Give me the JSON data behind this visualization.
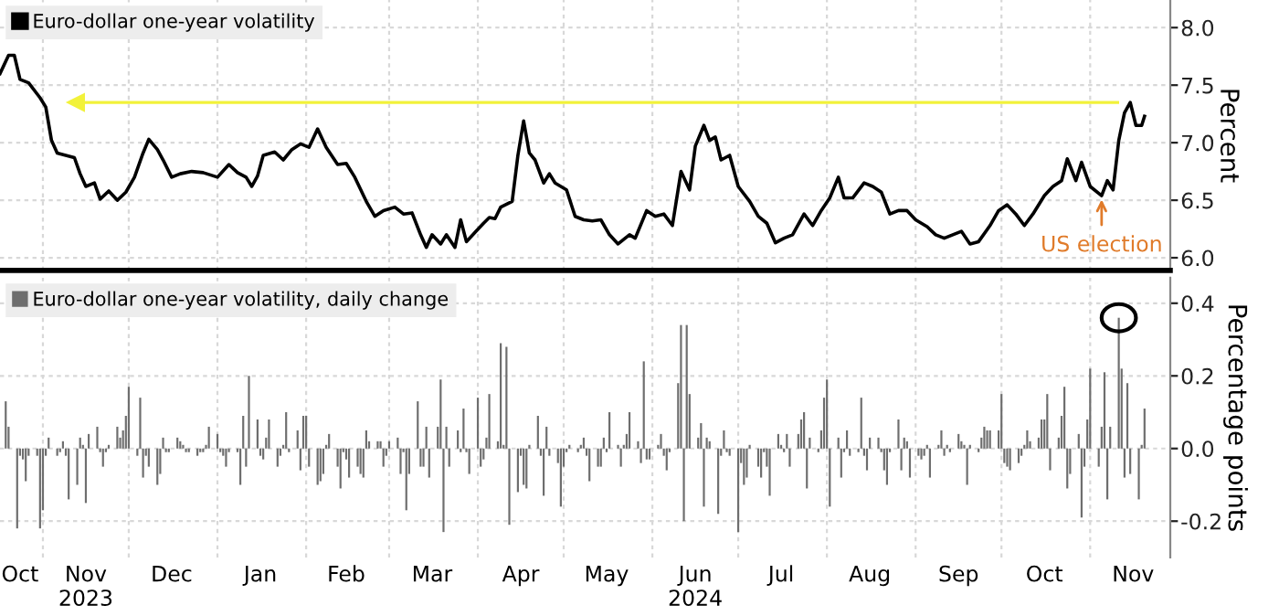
{
  "chart_data": [
    {
      "type": "line",
      "ylabel": "Percent",
      "legend": "top left",
      "grid": true,
      "tick_labels": "y",
      "xlim": [
        "2023-10-17",
        "2024-11-29"
      ],
      "ylim": [
        5.89,
        8.24
      ],
      "yticks": [
        {
          "value": 6,
          "label": "6.0"
        },
        {
          "value": 6.5,
          "label": "6.5"
        },
        {
          "value": 7,
          "label": "7.0"
        },
        {
          "value": 7.5,
          "label": "7.5"
        },
        {
          "value": 8,
          "label": "8.0"
        }
      ],
      "xticks": [
        {
          "value": "2023-11-01",
          "label": null
        },
        {
          "value": "2023-12-01",
          "label": null
        },
        {
          "value": "2024-01-01",
          "label": null
        },
        {
          "value": "2024-02-01",
          "label": null
        },
        {
          "value": "2024-03-01",
          "label": null
        },
        {
          "value": "2024-04-01",
          "label": null
        },
        {
          "value": "2024-05-01",
          "label": null
        },
        {
          "value": "2024-06-01",
          "label": null
        },
        {
          "value": "2024-07-01",
          "label": null
        },
        {
          "value": "2024-08-01",
          "label": null
        },
        {
          "value": "2024-09-01",
          "label": null
        },
        {
          "value": "2024-10-01",
          "label": null
        },
        {
          "value": "2024-11-01",
          "label": null
        }
      ],
      "ref_lines": [
        {
          "axis": "y",
          "value": 7.35,
          "color": "#f2f23a"
        }
      ],
      "annotations": [
        {
          "text": "US election",
          "x": "2024-11-05",
          "y": 6.55
        }
      ],
      "series": [
        {
          "name": "Euro-dollar one-year volatility",
          "color": "#000000",
          "x": [
            "2023-10-17",
            "2023-10-20",
            "2023-10-22",
            "2023-10-24",
            "2023-10-27",
            "2023-10-31",
            "2023-11-02",
            "2023-11-04",
            "2023-11-06",
            "2023-11-09",
            "2023-11-12",
            "2023-11-14",
            "2023-11-16",
            "2023-11-19",
            "2023-11-21",
            "2023-11-24",
            "2023-11-27",
            "2023-11-30",
            "2023-12-03",
            "2023-12-06",
            "2023-12-08",
            "2023-12-11",
            "2023-12-13",
            "2023-12-16",
            "2023-12-19",
            "2023-12-23",
            "2023-12-27",
            "2024-01-01",
            "2024-01-05",
            "2024-01-08",
            "2024-01-11",
            "2024-01-13",
            "2024-01-15",
            "2024-01-17",
            "2024-01-21",
            "2024-01-24",
            "2024-01-27",
            "2024-01-30",
            "2024-02-02",
            "2024-02-05",
            "2024-02-08",
            "2024-02-12",
            "2024-02-15",
            "2024-02-18",
            "2024-02-22",
            "2024-02-25",
            "2024-02-28",
            "2024-03-03",
            "2024-03-06",
            "2024-03-09",
            "2024-03-12",
            "2024-03-14",
            "2024-03-16",
            "2024-03-19",
            "2024-03-21",
            "2024-03-24",
            "2024-03-26",
            "2024-03-28",
            "2024-03-31",
            "2024-04-03",
            "2024-04-05",
            "2024-04-07",
            "2024-04-09",
            "2024-04-13",
            "2024-04-15",
            "2024-04-17",
            "2024-04-19",
            "2024-04-21",
            "2024-04-24",
            "2024-04-26",
            "2024-04-28",
            "2024-05-02",
            "2024-05-05",
            "2024-05-08",
            "2024-05-11",
            "2024-05-14",
            "2024-05-17",
            "2024-05-20",
            "2024-05-24",
            "2024-05-26",
            "2024-05-30",
            "2024-06-02",
            "2024-06-05",
            "2024-06-08",
            "2024-06-11",
            "2024-06-14",
            "2024-06-16",
            "2024-06-19",
            "2024-06-21",
            "2024-06-23",
            "2024-06-25",
            "2024-06-28",
            "2024-07-01",
            "2024-07-05",
            "2024-07-08",
            "2024-07-11",
            "2024-07-14",
            "2024-07-17",
            "2024-07-20",
            "2024-07-24",
            "2024-07-27",
            "2024-07-30",
            "2024-08-02",
            "2024-08-05",
            "2024-08-07",
            "2024-08-10",
            "2024-08-14",
            "2024-08-17",
            "2024-08-20",
            "2024-08-23",
            "2024-08-26",
            "2024-08-29",
            "2024-09-01",
            "2024-09-05",
            "2024-09-08",
            "2024-09-11",
            "2024-09-14",
            "2024-09-17",
            "2024-09-20",
            "2024-09-23",
            "2024-09-27",
            "2024-09-30",
            "2024-10-03",
            "2024-10-06",
            "2024-10-09",
            "2024-10-12",
            "2024-10-16",
            "2024-10-19",
            "2024-10-22",
            "2024-10-24",
            "2024-10-27",
            "2024-10-29",
            "2024-11-01",
            "2024-11-05",
            "2024-11-07",
            "2024-11-09",
            "2024-11-11",
            "2024-11-13",
            "2024-11-15",
            "2024-11-17",
            "2024-11-19",
            "2024-11-20"
          ],
          "values": [
            7.6,
            7.76,
            7.76,
            7.55,
            7.52,
            7.39,
            7.31,
            7.02,
            6.91,
            6.89,
            6.87,
            6.73,
            6.62,
            6.65,
            6.51,
            6.58,
            6.5,
            6.57,
            6.7,
            6.91,
            7.03,
            6.94,
            6.85,
            6.7,
            6.73,
            6.75,
            6.74,
            6.7,
            6.81,
            6.74,
            6.7,
            6.62,
            6.71,
            6.89,
            6.92,
            6.85,
            6.94,
            6.99,
            6.96,
            7.12,
            6.96,
            6.81,
            6.82,
            6.7,
            6.49,
            6.36,
            6.41,
            6.44,
            6.38,
            6.39,
            6.2,
            6.09,
            6.2,
            6.12,
            6.2,
            6.09,
            6.33,
            6.14,
            6.22,
            6.3,
            6.35,
            6.34,
            6.44,
            6.49,
            6.89,
            7.19,
            6.91,
            6.85,
            6.65,
            6.73,
            6.65,
            6.59,
            6.36,
            6.33,
            6.32,
            6.33,
            6.2,
            6.12,
            6.2,
            6.17,
            6.41,
            6.36,
            6.38,
            6.28,
            6.75,
            6.59,
            6.97,
            7.15,
            7.02,
            7.05,
            6.85,
            6.89,
            6.62,
            6.49,
            6.36,
            6.3,
            6.13,
            6.17,
            6.2,
            6.38,
            6.28,
            6.41,
            6.52,
            6.7,
            6.52,
            6.52,
            6.65,
            6.62,
            6.57,
            6.38,
            6.41,
            6.41,
            6.33,
            6.27,
            6.2,
            6.17,
            6.2,
            6.23,
            6.12,
            6.14,
            6.28,
            6.41,
            6.46,
            6.38,
            6.28,
            6.38,
            6.54,
            6.62,
            6.67,
            6.86,
            6.67,
            6.83,
            6.62,
            6.54,
            6.67,
            6.59,
            7.02,
            7.26,
            7.35,
            7.15,
            7.15,
            7.23
          ]
        }
      ]
    },
    {
      "type": "bar",
      "ylabel": "Percentage points",
      "legend": "top left",
      "grid": true,
      "xlim": [
        "2023-10-17",
        "2024-11-29"
      ],
      "ylim": [
        -0.3,
        0.47
      ],
      "yticks": [
        {
          "value": -0.2,
          "label": "-0.2"
        },
        {
          "value": 0,
          "label": "0.0"
        },
        {
          "value": 0.2,
          "label": "0.2"
        },
        {
          "value": 0.4,
          "label": "0.4"
        }
      ],
      "xticks": [
        {
          "value": "2023-10-24",
          "label": "Oct"
        },
        {
          "value": "2023-11-01",
          "label": null
        },
        {
          "value": "2023-11-16",
          "label": "Nov\n2023"
        },
        {
          "value": "2023-12-01",
          "label": null
        },
        {
          "value": "2023-12-16",
          "label": "Dec"
        },
        {
          "value": "2024-01-01",
          "label": null
        },
        {
          "value": "2024-01-16",
          "label": "Jan"
        },
        {
          "value": "2024-02-01",
          "label": null
        },
        {
          "value": "2024-02-15",
          "label": "Feb"
        },
        {
          "value": "2024-03-01",
          "label": null
        },
        {
          "value": "2024-03-16",
          "label": "Mar"
        },
        {
          "value": "2024-04-01",
          "label": null
        },
        {
          "value": "2024-04-16",
          "label": "Apr"
        },
        {
          "value": "2024-05-01",
          "label": null
        },
        {
          "value": "2024-05-16",
          "label": "May"
        },
        {
          "value": "2024-06-01",
          "label": null
        },
        {
          "value": "2024-06-16",
          "label": "Jun\n2024"
        },
        {
          "value": "2024-07-01",
          "label": null
        },
        {
          "value": "2024-07-16",
          "label": "Jul"
        },
        {
          "value": "2024-08-01",
          "label": null
        },
        {
          "value": "2024-08-16",
          "label": "Aug"
        },
        {
          "value": "2024-09-01",
          "label": null
        },
        {
          "value": "2024-09-16",
          "label": "Sep"
        },
        {
          "value": "2024-10-01",
          "label": null
        },
        {
          "value": "2024-10-16",
          "label": "Oct"
        },
        {
          "value": "2024-11-01",
          "label": null
        },
        {
          "value": "2024-11-16",
          "label": "Nov"
        }
      ],
      "x": [
        "2023-10-19",
        "2023-10-20",
        "2023-10-23",
        "2023-10-24",
        "2023-10-25",
        "2023-10-26",
        "2023-10-27",
        "2023-10-30",
        "2023-10-31",
        "2023-11-01",
        "2023-11-02",
        "2023-11-03",
        "2023-11-06",
        "2023-11-07",
        "2023-11-08",
        "2023-11-09",
        "2023-11-10",
        "2023-11-13",
        "2023-11-14",
        "2023-11-15",
        "2023-11-16",
        "2023-11-17",
        "2023-11-20",
        "2023-11-21",
        "2023-11-22",
        "2023-11-23",
        "2023-11-24",
        "2023-11-27",
        "2023-11-28",
        "2023-11-29",
        "2023-11-30",
        "2023-12-01",
        "2023-12-04",
        "2023-12-05",
        "2023-12-06",
        "2023-12-07",
        "2023-12-08",
        "2023-12-11",
        "2023-12-12",
        "2023-12-13",
        "2023-12-14",
        "2023-12-15",
        "2023-12-18",
        "2023-12-19",
        "2023-12-20",
        "2023-12-21",
        "2023-12-22",
        "2023-12-25",
        "2023-12-26",
        "2023-12-27",
        "2023-12-28",
        "2023-12-29",
        "2024-01-01",
        "2024-01-02",
        "2024-01-03",
        "2024-01-04",
        "2024-01-05",
        "2024-01-08",
        "2024-01-09",
        "2024-01-10",
        "2024-01-11",
        "2024-01-12",
        "2024-01-15",
        "2024-01-16",
        "2024-01-17",
        "2024-01-18",
        "2024-01-19",
        "2024-01-22",
        "2024-01-23",
        "2024-01-24",
        "2024-01-25",
        "2024-01-26",
        "2024-01-29",
        "2024-01-30",
        "2024-01-31",
        "2024-02-01",
        "2024-02-02",
        "2024-02-05",
        "2024-02-06",
        "2024-02-07",
        "2024-02-08",
        "2024-02-09",
        "2024-02-12",
        "2024-02-13",
        "2024-02-14",
        "2024-02-15",
        "2024-02-16",
        "2024-02-19",
        "2024-02-20",
        "2024-02-21",
        "2024-02-22",
        "2024-02-23",
        "2024-02-26",
        "2024-02-27",
        "2024-02-28",
        "2024-02-29",
        "2024-03-01",
        "2024-03-04",
        "2024-03-05",
        "2024-03-06",
        "2024-03-07",
        "2024-03-08",
        "2024-03-11",
        "2024-03-12",
        "2024-03-13",
        "2024-03-14",
        "2024-03-15",
        "2024-03-18",
        "2024-03-19",
        "2024-03-20",
        "2024-03-21",
        "2024-03-22",
        "2024-03-25",
        "2024-03-26",
        "2024-03-27",
        "2024-03-28",
        "2024-03-29",
        "2024-04-01",
        "2024-04-02",
        "2024-04-03",
        "2024-04-04",
        "2024-04-05",
        "2024-04-08",
        "2024-04-09",
        "2024-04-10",
        "2024-04-11",
        "2024-04-12",
        "2024-04-15",
        "2024-04-16",
        "2024-04-17",
        "2024-04-18",
        "2024-04-19",
        "2024-04-22",
        "2024-04-23",
        "2024-04-24",
        "2024-04-25",
        "2024-04-26",
        "2024-04-29",
        "2024-04-30",
        "2024-05-01",
        "2024-05-02",
        "2024-05-03",
        "2024-05-06",
        "2024-05-07",
        "2024-05-08",
        "2024-05-09",
        "2024-05-10",
        "2024-05-13",
        "2024-05-14",
        "2024-05-15",
        "2024-05-16",
        "2024-05-17",
        "2024-05-20",
        "2024-05-21",
        "2024-05-22",
        "2024-05-23",
        "2024-05-24",
        "2024-05-27",
        "2024-05-28",
        "2024-05-29",
        "2024-05-30",
        "2024-05-31",
        "2024-06-03",
        "2024-06-04",
        "2024-06-05",
        "2024-06-06",
        "2024-06-07",
        "2024-06-10",
        "2024-06-11",
        "2024-06-12",
        "2024-06-13",
        "2024-06-14",
        "2024-06-17",
        "2024-06-18",
        "2024-06-19",
        "2024-06-20",
        "2024-06-21",
        "2024-06-24",
        "2024-06-25",
        "2024-06-26",
        "2024-06-27",
        "2024-06-28",
        "2024-07-01",
        "2024-07-02",
        "2024-07-03",
        "2024-07-04",
        "2024-07-05",
        "2024-07-08",
        "2024-07-09",
        "2024-07-10",
        "2024-07-11",
        "2024-07-12",
        "2024-07-15",
        "2024-07-16",
        "2024-07-17",
        "2024-07-18",
        "2024-07-19",
        "2024-07-22",
        "2024-07-23",
        "2024-07-24",
        "2024-07-25",
        "2024-07-26",
        "2024-07-29",
        "2024-07-30",
        "2024-07-31",
        "2024-08-01",
        "2024-08-02",
        "2024-08-05",
        "2024-08-06",
        "2024-08-07",
        "2024-08-08",
        "2024-08-09",
        "2024-08-12",
        "2024-08-13",
        "2024-08-14",
        "2024-08-15",
        "2024-08-16",
        "2024-08-19",
        "2024-08-20",
        "2024-08-21",
        "2024-08-22",
        "2024-08-23",
        "2024-08-26",
        "2024-08-27",
        "2024-08-28",
        "2024-08-29",
        "2024-08-30",
        "2024-09-02",
        "2024-09-03",
        "2024-09-04",
        "2024-09-05",
        "2024-09-06",
        "2024-09-09",
        "2024-09-10",
        "2024-09-11",
        "2024-09-12",
        "2024-09-13",
        "2024-09-16",
        "2024-09-17",
        "2024-09-18",
        "2024-09-19",
        "2024-09-20",
        "2024-09-23",
        "2024-09-24",
        "2024-09-25",
        "2024-09-26",
        "2024-09-27",
        "2024-09-30",
        "2024-10-01",
        "2024-10-02",
        "2024-10-03",
        "2024-10-04",
        "2024-10-07",
        "2024-10-08",
        "2024-10-09",
        "2024-10-10",
        "2024-10-11",
        "2024-10-14",
        "2024-10-15",
        "2024-10-16",
        "2024-10-17",
        "2024-10-18",
        "2024-10-21",
        "2024-10-22",
        "2024-10-23",
        "2024-10-24",
        "2024-10-25",
        "2024-10-28",
        "2024-10-29",
        "2024-10-30",
        "2024-10-31",
        "2024-11-01",
        "2024-11-04",
        "2024-11-05",
        "2024-11-06",
        "2024-11-07",
        "2024-11-08",
        "2024-11-11",
        "2024-11-12",
        "2024-11-13",
        "2024-11-14",
        "2024-11-15",
        "2024-11-18",
        "2024-11-19",
        "2024-11-20"
      ],
      "series": [
        {
          "name": "Euro-dollar one-year volatility, daily change",
          "color": "#6e6e6e",
          "values": [
            0.13,
            0.06,
            -0.22,
            -0.02,
            -0.03,
            -0.09,
            -0.02,
            -0.02,
            -0.22,
            -0.17,
            -0.02,
            0.03,
            -0.02,
            -0.01,
            0.02,
            -0.02,
            -0.14,
            -0.1,
            0.03,
            0.01,
            -0.15,
            0.04,
            0.06,
            -0.01,
            -0.05,
            -0.01,
            0.01,
            0.06,
            0.03,
            0.05,
            0.09,
            0.17,
            -0.02,
            0.14,
            -0.08,
            -0.02,
            -0.05,
            -0.1,
            -0.07,
            0.03,
            -0.01,
            -0.01,
            0.03,
            0.02,
            0.01,
            -0.01,
            -0.01,
            -0.02,
            -0.01,
            -0.01,
            0.01,
            0.06,
            0.04,
            -0.01,
            -0.02,
            -0.05,
            -0.01,
            -0.01,
            -0.1,
            0.09,
            -0.05,
            0.2,
            0.08,
            -0.02,
            -0.03,
            0.03,
            0.08,
            -0.05,
            -0.02,
            0.01,
            0.1,
            -0.01,
            0.05,
            -0.06,
            0.09,
            0.09,
            -0.05,
            -0.1,
            -0.09,
            -0.07,
            0.01,
            0.04,
            -0.05,
            -0.11,
            -0.01,
            -0.03,
            -0.08,
            -0.05,
            -0.07,
            -0.08,
            0.05,
            0.02,
            0.02,
            0.02,
            -0.05,
            -0.02,
            0.02,
            0.03,
            -0.07,
            -0.01,
            -0.17,
            -0.07,
            0.13,
            -0.05,
            -0.05,
            0.06,
            -0.08,
            0.06,
            0.19,
            -0.23,
            0.06,
            -0.05,
            0.05,
            -0.01,
            0.11,
            -0.01,
            -0.07,
            0.14,
            -0.05,
            -0.03,
            0.03,
            0.15,
            0.02,
            0.29,
            0.01,
            0.28,
            -0.21,
            -0.12,
            -0.02,
            -0.1,
            -0.11,
            0.01,
            0.09,
            -0.02,
            -0.13,
            0.06,
            -0.02,
            -0.04,
            -0.16,
            -0.05,
            -0.01,
            0.01,
            -0.01,
            0.01,
            0.03,
            -0.02,
            -0.09,
            -0.05,
            -0.05,
            0.03,
            -0.01,
            0.1,
            0.01,
            -0.05,
            0.01,
            0.04,
            0.1,
            0.02,
            -0.04,
            0.24,
            -0.03,
            -0.03,
            0.01,
            0.04,
            -0.02,
            -0.06,
            -0.01,
            0.18,
            0.34,
            -0.2,
            0.34,
            0.15,
            0.03,
            0.07,
            -0.16,
            0.03,
            0.02,
            -0.18,
            -0.02,
            0.05,
            -0.01,
            -0.02,
            -0.23,
            -0.04,
            -0.1,
            -0.08,
            0.01,
            -0.05,
            -0.08,
            -0.01,
            -0.05,
            -0.13,
            0.04,
            0.01,
            -0.01,
            0.04,
            -0.05,
            0.04,
            0.08,
            0.1,
            -0.11,
            0.03,
            -0.01,
            0.05,
            0.14,
            0.19,
            -0.16,
            0.03,
            -0.08,
            -0.01,
            0.05,
            -0.02,
            -0.01,
            0.14,
            -0.02,
            -0.06,
            0.03,
            0.03,
            -0.01,
            -0.06,
            -0.1,
            -0.01,
            0.08,
            -0.06,
            0.03,
            0.02,
            -0.08,
            -0.02,
            -0.03,
            -0.02,
            0.01,
            -0.08,
            0.01,
            0.05,
            -0.02,
            0.01,
            -0.01,
            0.04,
            0.02,
            0.01,
            -0.1,
            0.01,
            -0.01,
            0.03,
            0.06,
            0.05,
            0.05,
            0.05,
            0.15,
            -0.04,
            -0.05,
            -0.06,
            -0.04,
            -0.02,
            0.01,
            0.05,
            0.02,
            0.03,
            0.08,
            0.08,
            0.15,
            -0.06,
            0.03,
            0.09,
            0.17,
            -0.11,
            -0.07,
            0.04,
            -0.19,
            -0.05,
            0.08,
            0.22,
            -0.05,
            0.06,
            0.21,
            -0.14,
            0.06,
            0.36,
            0.22,
            -0.08,
            0.18,
            -0.07,
            -0.14,
            0.01,
            0.11
          ]
        }
      ]
    }
  ]
}
